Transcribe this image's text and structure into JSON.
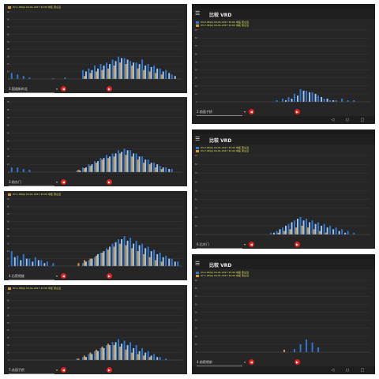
{
  "colors": {
    "series_a": "#2f78d2",
    "series_b": "#d99a3c",
    "series_c": "#9cc4f0",
    "legend_text": "#e8e860",
    "nav_button": "#e02020",
    "panel_bg": "#262626"
  },
  "icons": {
    "menu": "menu-icon",
    "prev": "left-arrow-icon",
    "next": "right-arrow-icon",
    "back": "back-icon",
    "home": "home-icon",
    "recent": "recent-apps-icon"
  },
  "glyphs": {
    "menu": "☰",
    "prev": "◀",
    "next": "▶",
    "dropdown": "▾",
    "back": "◁",
    "home": "○",
    "recent": "□"
  },
  "panels": [
    {
      "id": "p1",
      "statusbar": false,
      "title": "",
      "legend": [
        {
          "series": "series_b",
          "text": "07-1-08(A)  04-01-2017 22:00 中区 東山沿"
        }
      ],
      "location": "3.国道街的北",
      "navbar": false,
      "chart_data": {
        "type": "bar",
        "y_ticks": [
          0,
          10,
          20,
          30,
          40,
          50,
          60,
          70,
          80,
          90
        ],
        "series": [
          {
            "color_key": "series_a",
            "values": [
              8,
              6,
              4,
              2,
              0,
              0,
              0,
              1,
              0,
              2,
              0,
              0,
              12,
              14,
              18,
              20,
              22,
              26,
              30,
              28,
              24,
              22,
              26,
              20,
              18,
              14,
              12,
              6,
              0
            ]
          },
          {
            "color_key": "series_b",
            "values": [
              0,
              0,
              0,
              0,
              0,
              0,
              0,
              0,
              0,
              0,
              0,
              0,
              4,
              8,
              10,
              12,
              14,
              18,
              22,
              20,
              18,
              14,
              12,
              10,
              8,
              6,
              0,
              0,
              0
            ]
          },
          {
            "color_key": "series_c",
            "values": [
              0,
              0,
              0,
              0,
              0,
              0,
              0,
              0,
              0,
              0,
              0,
              0,
              10,
              12,
              14,
              18,
              20,
              24,
              28,
              26,
              22,
              20,
              18,
              16,
              14,
              10,
              8,
              4,
              0
            ]
          }
        ]
      }
    },
    {
      "id": "p2",
      "statusbar": false,
      "title": "",
      "legend": [],
      "location": "3.前东门",
      "navbar": false,
      "chart_data": {
        "type": "bar",
        "y_ticks": [
          0,
          10,
          20,
          30,
          40,
          50,
          60,
          70,
          80,
          90
        ],
        "series": [
          {
            "color_key": "series_a",
            "values": [
              6,
              6,
              4,
              3,
              0,
              0,
              0,
              0,
              0,
              0,
              0,
              2,
              6,
              10,
              14,
              18,
              22,
              24,
              28,
              30,
              28,
              24,
              20,
              16,
              12,
              8,
              6,
              4,
              0
            ]
          },
          {
            "color_key": "series_b",
            "values": [
              0,
              0,
              0,
              0,
              0,
              0,
              0,
              0,
              0,
              0,
              0,
              3,
              5,
              8,
              12,
              16,
              18,
              20,
              24,
              22,
              20,
              16,
              12,
              10,
              6,
              4,
              0,
              0,
              0
            ]
          },
          {
            "color_key": "series_c",
            "values": [
              0,
              0,
              0,
              0,
              0,
              0,
              0,
              0,
              0,
              0,
              0,
              2,
              6,
              10,
              14,
              18,
              20,
              24,
              26,
              28,
              24,
              20,
              16,
              12,
              10,
              6,
              4,
              0,
              0
            ]
          }
        ]
      }
    },
    {
      "id": "p3",
      "statusbar": false,
      "title": "",
      "legend": [
        {
          "series": "series_b",
          "text": "07-1-08(A)  04-01-2017 22:00 中区 東山沿"
        }
      ],
      "location": "4.后箭馆楼",
      "navbar": false,
      "chart_data": {
        "type": "bar",
        "y_ticks": [
          0,
          10,
          20,
          30,
          40,
          50,
          60,
          70,
          80,
          90
        ],
        "series": [
          {
            "color_key": "series_a",
            "values": [
              20,
              14,
              16,
              10,
              12,
              8,
              6,
              4,
              0,
              0,
              0,
              0,
              4,
              8,
              12,
              18,
              24,
              30,
              36,
              40,
              38,
              34,
              30,
              26,
              22,
              18,
              14,
              10,
              6
            ]
          },
          {
            "color_key": "series_b",
            "values": [
              0,
              0,
              0,
              0,
              0,
              0,
              0,
              0,
              0,
              0,
              0,
              4,
              8,
              10,
              14,
              18,
              22,
              26,
              30,
              28,
              24,
              20,
              16,
              12,
              8,
              6,
              0,
              0,
              0
            ]
          },
          {
            "color_key": "series_c",
            "values": [
              12,
              8,
              10,
              6,
              8,
              4,
              0,
              0,
              0,
              0,
              0,
              0,
              6,
              10,
              16,
              20,
              26,
              32,
              36,
              34,
              30,
              28,
              24,
              20,
              16,
              12,
              10,
              6,
              0
            ]
          }
        ]
      }
    },
    {
      "id": "p4",
      "statusbar": false,
      "title": "",
      "legend": [
        {
          "series": "series_b",
          "text": "07-1-08(A)  04-01-2017 22:00 中区 東山沿"
        }
      ],
      "location": "7.花园子桥",
      "navbar": false,
      "chart_data": {
        "type": "bar",
        "y_ticks": [
          0,
          10,
          20,
          30,
          40,
          50,
          60,
          70,
          80,
          90
        ],
        "series": [
          {
            "color_key": "series_a",
            "values": [
              0,
              0,
              0,
              0,
              0,
              0,
              0,
              0,
              0,
              0,
              0,
              2,
              4,
              8,
              12,
              16,
              20,
              24,
              28,
              26,
              24,
              20,
              16,
              12,
              8,
              4,
              2,
              0,
              0
            ]
          },
          {
            "color_key": "series_b",
            "values": [
              0,
              0,
              0,
              0,
              0,
              0,
              0,
              0,
              0,
              0,
              0,
              2,
              6,
              10,
              14,
              18,
              22,
              20,
              18,
              14,
              10,
              8,
              6,
              4,
              0,
              0,
              0,
              0,
              0
            ]
          },
          {
            "color_key": "series_c",
            "values": [
              0,
              0,
              0,
              0,
              0,
              0,
              0,
              0,
              0,
              0,
              0,
              0,
              4,
              8,
              12,
              16,
              20,
              24,
              22,
              20,
              16,
              12,
              10,
              6,
              4,
              0,
              0,
              0,
              0
            ]
          }
        ]
      }
    },
    {
      "id": "p5",
      "statusbar": true,
      "title": "比较 VRD",
      "legend": [
        {
          "series": "series_a",
          "text": "03-2-08(A)  04-01-2017 15:00 中區 東山沿"
        },
        {
          "series": "series_b",
          "text": "03-7-08(A)  04-01-2017 22:00 中區 東山沿"
        }
      ],
      "location": "2.前面子桥",
      "navbar": true,
      "chart_data": {
        "type": "bar",
        "y_ticks": [
          0,
          10,
          20,
          30,
          40,
          50,
          60,
          70,
          80,
          90
        ],
        "series": [
          {
            "color_key": "series_a",
            "values": [
              0,
              0,
              0,
              0,
              0,
              0,
              0,
              0,
              0,
              0,
              0,
              0,
              0,
              2,
              4,
              6,
              10,
              16,
              14,
              12,
              8,
              4,
              2,
              2,
              4,
              2,
              2,
              0,
              0
            ]
          },
          {
            "color_key": "series_b",
            "values": [
              0,
              0,
              0,
              0,
              0,
              0,
              0,
              0,
              0,
              0,
              0,
              0,
              0,
              0,
              0,
              0,
              0,
              0,
              0,
              0,
              0,
              0,
              0,
              0,
              0,
              0,
              0,
              0,
              0
            ]
          },
          {
            "color_key": "series_c",
            "values": [
              0,
              0,
              0,
              0,
              0,
              0,
              0,
              0,
              0,
              0,
              0,
              0,
              0,
              0,
              2,
              4,
              8,
              14,
              12,
              10,
              6,
              4,
              2,
              0,
              0,
              0,
              0,
              0,
              0
            ]
          }
        ]
      }
    },
    {
      "id": "p6",
      "statusbar": true,
      "title": "比较 VRD",
      "legend": [
        {
          "series": "series_a",
          "text": "03-2-08(A)  04-01-2017 15:00 中區 東山沿"
        },
        {
          "series": "series_b",
          "text": "03-7-08(A)  04-01-2017 22:00 中區 東山沿"
        }
      ],
      "location": "6.后东门",
      "navbar": false,
      "chart_data": {
        "type": "bar",
        "y_ticks": [
          0,
          10,
          20,
          30,
          40,
          50,
          60,
          70,
          80,
          90
        ],
        "series": [
          {
            "color_key": "series_a",
            "values": [
              0,
              0,
              0,
              0,
              0,
              0,
              0,
              0,
              0,
              0,
              0,
              0,
              2,
              4,
              8,
              12,
              16,
              20,
              18,
              16,
              14,
              12,
              10,
              8,
              6,
              4,
              2,
              0,
              0
            ]
          },
          {
            "color_key": "series_b",
            "values": [
              0,
              0,
              0,
              0,
              0,
              0,
              0,
              0,
              0,
              0,
              0,
              0,
              0,
              2,
              4,
              6,
              8,
              10,
              8,
              6,
              4,
              2,
              0,
              0,
              0,
              0,
              0,
              0,
              0
            ]
          },
          {
            "color_key": "series_c",
            "values": [
              0,
              0,
              0,
              0,
              0,
              0,
              0,
              0,
              0,
              0,
              0,
              0,
              2,
              6,
              10,
              14,
              18,
              16,
              14,
              12,
              10,
              8,
              6,
              4,
              2,
              0,
              0,
              0,
              0
            ]
          }
        ]
      }
    },
    {
      "id": "p7",
      "statusbar": true,
      "title": "比较 VRD",
      "legend": [
        {
          "series": "series_a",
          "text": "03-2-08(A)  04-01-2017 15:00 中區 東山沿"
        },
        {
          "series": "series_b",
          "text": "07-1-08(A)  04-01-2017 22:00 中區 東山沿"
        }
      ],
      "location": "4.前箭馆前",
      "navbar": true,
      "chart_data": {
        "type": "bar",
        "y_ticks": [
          0,
          10,
          20,
          30,
          40,
          50,
          60,
          70,
          80,
          90
        ],
        "series": [
          {
            "color_key": "series_a",
            "values": [
              0,
              0,
              0,
              0,
              0,
              0,
              0,
              0,
              0,
              0,
              0,
              0,
              0,
              0,
              0,
              0,
              4,
              10,
              16,
              12,
              6,
              0,
              0,
              0,
              0,
              0,
              0,
              0,
              0
            ]
          },
          {
            "color_key": "series_b",
            "values": [
              0,
              0,
              0,
              0,
              0,
              0,
              0,
              0,
              0,
              0,
              0,
              0,
              0,
              0,
              3,
              0,
              0,
              0,
              0,
              0,
              0,
              0,
              0,
              0,
              0,
              0,
              0,
              0,
              0
            ]
          },
          {
            "color_key": "series_c",
            "values": [
              0,
              0,
              0,
              0,
              0,
              0,
              0,
              0,
              0,
              0,
              0,
              0,
              0,
              0,
              0,
              0,
              0,
              0,
              0,
              0,
              0,
              0,
              0,
              0,
              0,
              0,
              0,
              0,
              0
            ]
          }
        ]
      }
    }
  ]
}
